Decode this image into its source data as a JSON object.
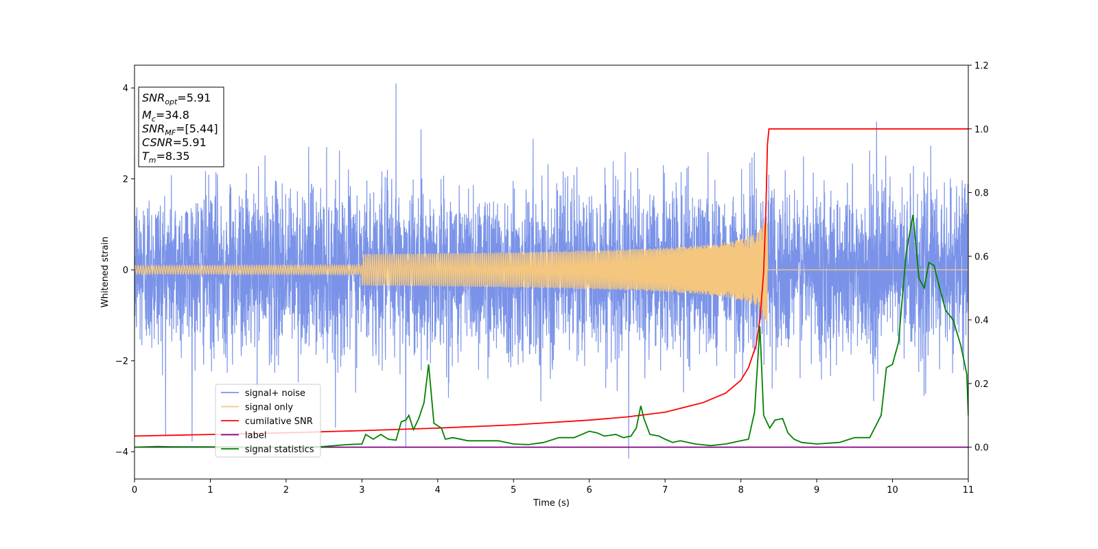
{
  "chart_data": {
    "type": "line",
    "title": "",
    "xlabel": "Time (s)",
    "ylabel": "Whitened strain",
    "xlim": [
      0,
      11
    ],
    "ylim_left": [
      -4.6,
      4.5
    ],
    "ylim_right": [
      -0.1,
      1.2
    ],
    "x_ticks": [
      "0",
      "1",
      "2",
      "3",
      "4",
      "5",
      "6",
      "7",
      "8",
      "9",
      "10",
      "11"
    ],
    "y_left_ticks": [
      "4",
      "2",
      "0",
      "−2",
      "−4"
    ],
    "y_left_tick_values": [
      4,
      2,
      0,
      -2,
      -4
    ],
    "y_right_ticks": [
      "1.2",
      "1.0",
      "0.8",
      "0.6",
      "0.4",
      "0.2",
      "0.0"
    ],
    "y_right_tick_values": [
      1.2,
      1.0,
      0.8,
      0.6,
      0.4,
      0.2,
      0.0
    ],
    "grid": false,
    "legend_position": "lower-left",
    "annotation": {
      "lines": [
        {
          "base": "SNR",
          "sub": "opt",
          "value": "=5.91"
        },
        {
          "base": "M",
          "sub": "c",
          "value": "=34.8"
        },
        {
          "base": "SNR",
          "sub": "MF",
          "value": "=[5.44]"
        },
        {
          "base": "CSNR",
          "sub": "",
          "value": "=5.91"
        },
        {
          "base": "T",
          "sub": "m",
          "value": "=8.35"
        }
      ]
    },
    "series": [
      {
        "name": "signal+ noise",
        "axis": "left",
        "color": "#7a93e8",
        "kind": "noise",
        "x_range": [
          0,
          11
        ],
        "amplitude_typical": 1.5,
        "amplitude_max": 4.1,
        "note_peaks": [
          [
            3.45,
            4.1
          ],
          [
            6.52,
            -4.15
          ],
          [
            3.58,
            -3.9
          ]
        ]
      },
      {
        "name": "signal only",
        "axis": "left",
        "color": "#f5c77e",
        "kind": "chirp",
        "merger_time": 8.35,
        "peak_amplitude": 1.4
      },
      {
        "name": "cumilative SNR",
        "axis": "right",
        "color": "#ff0000",
        "x": [
          0,
          1,
          2,
          3,
          4,
          5,
          6,
          6.5,
          7,
          7.5,
          7.8,
          8.0,
          8.1,
          8.2,
          8.25,
          8.3,
          8.33,
          8.35,
          8.37,
          11
        ],
        "y": [
          0.035,
          0.04,
          0.045,
          0.052,
          0.06,
          0.07,
          0.085,
          0.095,
          0.11,
          0.14,
          0.17,
          0.21,
          0.25,
          0.32,
          0.4,
          0.55,
          0.75,
          0.95,
          1.0,
          1.0
        ]
      },
      {
        "name": "label",
        "axis": "right",
        "color": "#800080",
        "x": [
          0,
          11
        ],
        "y": [
          0,
          0
        ]
      },
      {
        "name": "signal statistics",
        "axis": "right",
        "color": "#008000",
        "x": [
          0,
          0.3,
          0.6,
          1.0,
          1.5,
          2.0,
          2.5,
          2.8,
          3.0,
          3.05,
          3.15,
          3.25,
          3.35,
          3.45,
          3.52,
          3.58,
          3.62,
          3.68,
          3.75,
          3.82,
          3.88,
          3.95,
          4.05,
          4.1,
          4.2,
          4.4,
          4.6,
          4.8,
          5.0,
          5.2,
          5.4,
          5.6,
          5.8,
          6.0,
          6.1,
          6.2,
          6.35,
          6.45,
          6.55,
          6.62,
          6.68,
          6.72,
          6.8,
          6.92,
          7.0,
          7.1,
          7.2,
          7.4,
          7.6,
          7.8,
          8.0,
          8.1,
          8.18,
          8.25,
          8.3,
          8.38,
          8.45,
          8.55,
          8.62,
          8.7,
          8.8,
          9.0,
          9.3,
          9.5,
          9.7,
          9.85,
          9.92,
          10.0,
          10.08,
          10.18,
          10.27,
          10.35,
          10.42,
          10.48,
          10.55,
          10.6,
          10.7,
          10.8,
          10.9,
          10.98,
          11.0
        ],
        "y": [
          0.0,
          0.002,
          0.001,
          0.001,
          0.0,
          0.0,
          0.002,
          0.008,
          0.01,
          0.04,
          0.025,
          0.04,
          0.025,
          0.022,
          0.08,
          0.085,
          0.1,
          0.055,
          0.09,
          0.14,
          0.26,
          0.075,
          0.06,
          0.025,
          0.03,
          0.02,
          0.02,
          0.02,
          0.01,
          0.008,
          0.015,
          0.03,
          0.03,
          0.05,
          0.045,
          0.035,
          0.04,
          0.03,
          0.035,
          0.06,
          0.13,
          0.09,
          0.04,
          0.035,
          0.025,
          0.015,
          0.02,
          0.01,
          0.005,
          0.01,
          0.02,
          0.025,
          0.11,
          0.38,
          0.1,
          0.06,
          0.085,
          0.09,
          0.045,
          0.025,
          0.015,
          0.01,
          0.015,
          0.03,
          0.03,
          0.1,
          0.25,
          0.26,
          0.33,
          0.61,
          0.73,
          0.53,
          0.5,
          0.58,
          0.57,
          0.52,
          0.43,
          0.4,
          0.32,
          0.23,
          0.1
        ]
      }
    ]
  }
}
